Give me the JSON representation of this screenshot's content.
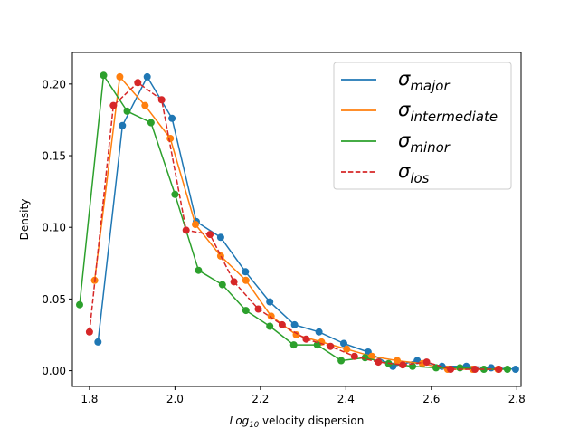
{
  "chart_data": {
    "type": "line",
    "xlabel_main": "Log",
    "xlabel_sub": "10",
    "xlabel_rest": " velocity dispersion",
    "ylabel": "Density",
    "xlim": [
      1.76,
      2.81
    ],
    "ylim": [
      -0.011,
      0.222
    ],
    "x_ticks": [
      1.8,
      2.0,
      2.2,
      2.4,
      2.6,
      2.8
    ],
    "x_tick_labels": [
      "1.8",
      "2.0",
      "2.2",
      "2.4",
      "2.6",
      "2.8"
    ],
    "y_ticks": [
      0.0,
      0.05,
      0.1,
      0.15,
      0.2
    ],
    "y_tick_labels": [
      "0.00",
      "0.05",
      "0.10",
      "0.15",
      "0.20"
    ],
    "legend_position": "upper right",
    "series": [
      {
        "name": "σ_major",
        "label_main": "σ",
        "label_sub": "major",
        "color": "#1f77b4",
        "dashed": false,
        "x": [
          1.82,
          1.877,
          1.935,
          1.993,
          2.05,
          2.107,
          2.165,
          2.222,
          2.28,
          2.337,
          2.395,
          2.452,
          2.51,
          2.567,
          2.625,
          2.682,
          2.74,
          2.797
        ],
        "y": [
          0.02,
          0.171,
          0.205,
          0.176,
          0.104,
          0.093,
          0.069,
          0.048,
          0.032,
          0.027,
          0.019,
          0.013,
          0.003,
          0.007,
          0.003,
          0.003,
          0.002,
          0.001
        ]
      },
      {
        "name": "σ_intermediate",
        "label_main": "σ",
        "label_sub": "intermediate",
        "color": "#ff7f0e",
        "dashed": false,
        "x": [
          1.812,
          1.871,
          1.93,
          1.989,
          2.048,
          2.107,
          2.166,
          2.225,
          2.284,
          2.343,
          2.402,
          2.461,
          2.52,
          2.579,
          2.638,
          2.697,
          2.756
        ],
        "y": [
          0.063,
          0.205,
          0.185,
          0.162,
          0.102,
          0.08,
          0.063,
          0.038,
          0.025,
          0.02,
          0.015,
          0.01,
          0.007,
          0.005,
          0.001,
          0.001,
          0.001
        ]
      },
      {
        "name": "σ_minor",
        "label_main": "σ",
        "label_sub": "minor",
        "color": "#2ca02c",
        "dashed": false,
        "x": [
          1.777,
          1.833,
          1.888,
          1.944,
          2.0,
          2.055,
          2.111,
          2.166,
          2.222,
          2.278,
          2.333,
          2.389,
          2.445,
          2.5,
          2.556,
          2.611,
          2.667,
          2.723,
          2.778
        ],
        "y": [
          0.046,
          0.206,
          0.181,
          0.173,
          0.123,
          0.07,
          0.06,
          0.042,
          0.031,
          0.018,
          0.018,
          0.007,
          0.009,
          0.005,
          0.003,
          0.002,
          0.002,
          0.001,
          0.001
        ]
      },
      {
        "name": "σ_los",
        "label_main": "σ",
        "label_sub": "los",
        "color": "#d62728",
        "dashed": true,
        "x": [
          1.8,
          1.856,
          1.913,
          1.969,
          2.026,
          2.082,
          2.138,
          2.195,
          2.251,
          2.307,
          2.364,
          2.42,
          2.476,
          2.533,
          2.589,
          2.645,
          2.702,
          2.758
        ],
        "y": [
          0.027,
          0.185,
          0.201,
          0.189,
          0.098,
          0.095,
          0.062,
          0.043,
          0.032,
          0.022,
          0.017,
          0.01,
          0.006,
          0.004,
          0.006,
          0.001,
          0.001,
          0.001
        ]
      }
    ]
  }
}
